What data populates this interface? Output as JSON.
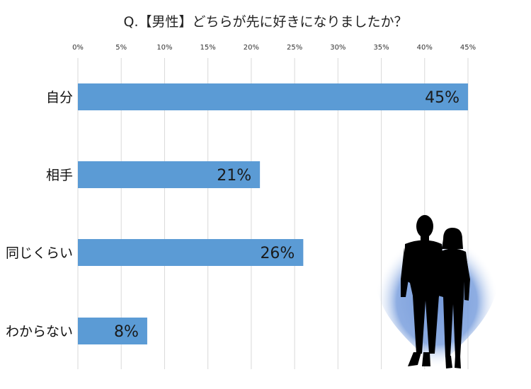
{
  "chart_data": {
    "type": "bar",
    "orientation": "horizontal",
    "title": "Q.【男性】どちらが先に好きになりましたか？",
    "categories": [
      "自分",
      "相手",
      "同じくらい",
      "わからない"
    ],
    "values": [
      45,
      21,
      26,
      8
    ],
    "value_labels": [
      "45%",
      "21%",
      "26%",
      "8%"
    ],
    "ticks": [
      "0%",
      "5%",
      "10%",
      "15%",
      "20%",
      "25%",
      "30%",
      "35%",
      "40%",
      "45%"
    ],
    "tick_values": [
      0,
      5,
      10,
      15,
      20,
      25,
      30,
      35,
      40,
      45
    ],
    "xlim": [
      0,
      45
    ],
    "grid": true,
    "xaxis_position": "top",
    "bar_color": "#5b9bd5"
  },
  "illustration": {
    "icon": "couple-silhouette-icon",
    "glow_color": "#6f95d8",
    "figure_color": "#000000"
  }
}
